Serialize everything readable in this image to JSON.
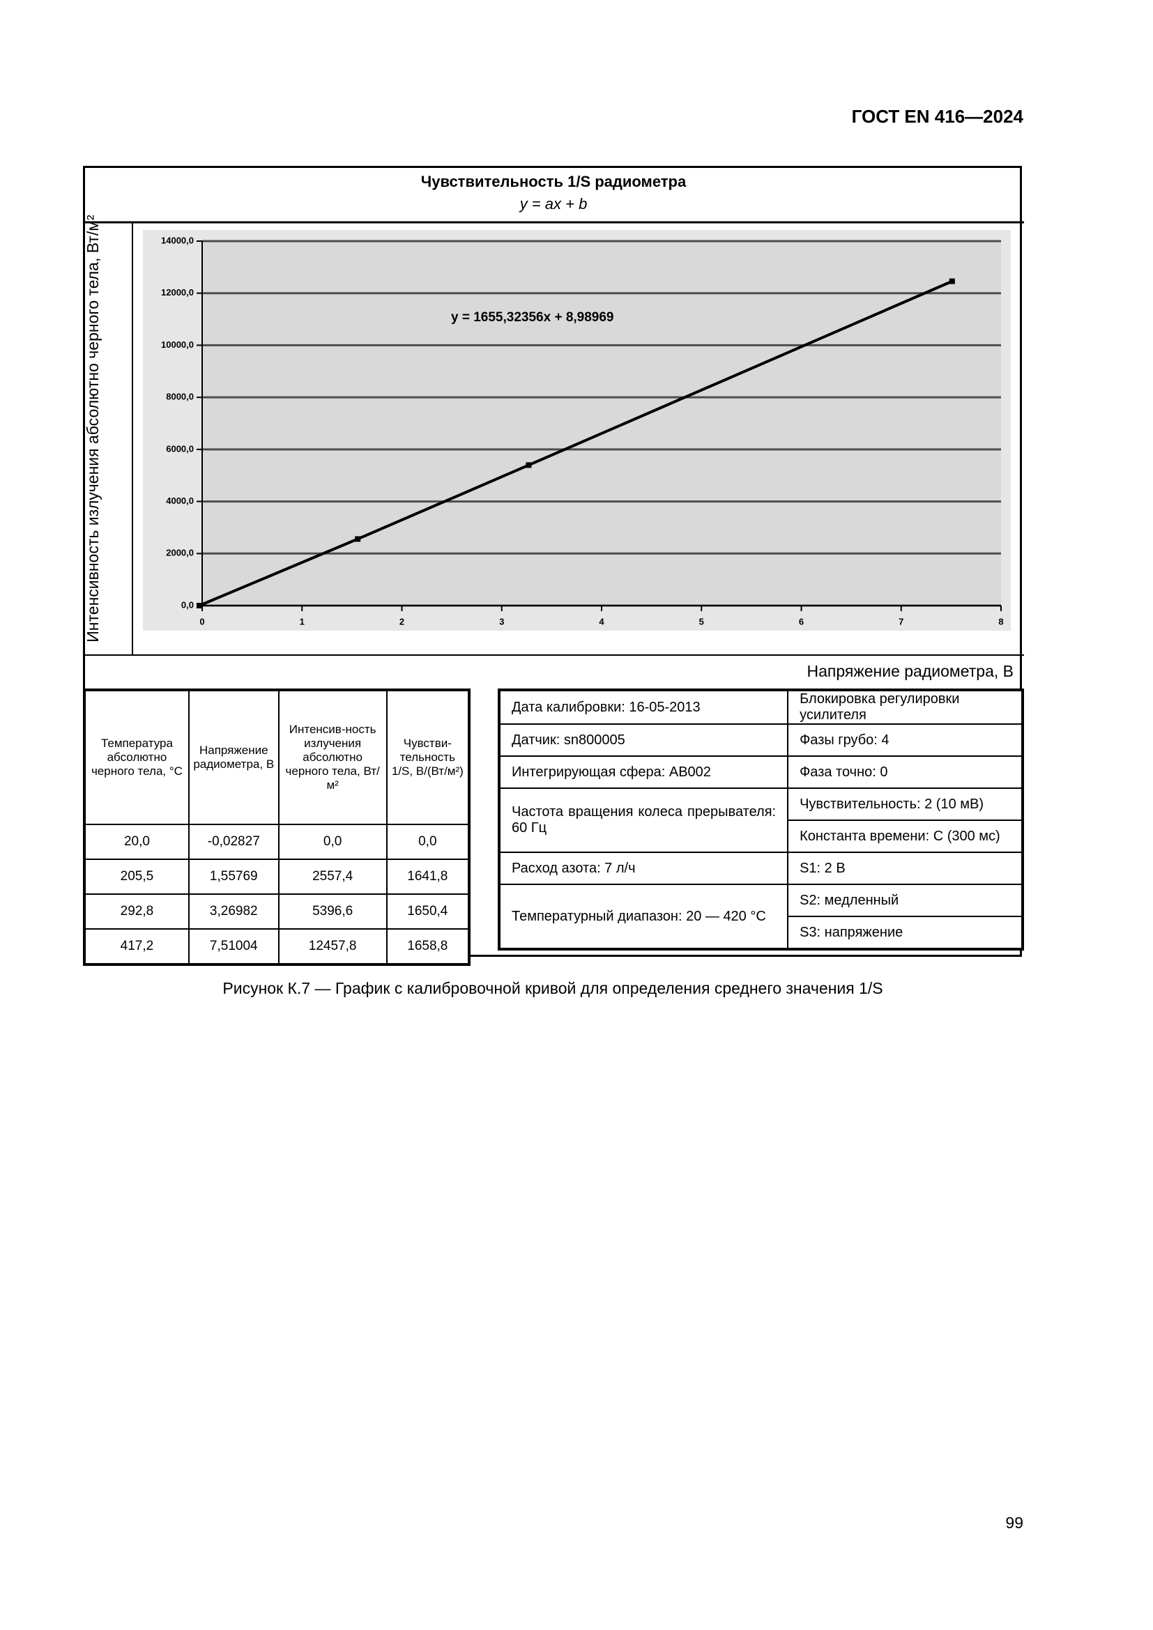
{
  "header": "ГОСТ EN 416—2024",
  "chart_data": {
    "type": "line",
    "title": "Чувствительность 1/S радиометра",
    "subtitle": "y = ax + b",
    "annotation": "y = 1655,32356x + 8,98969",
    "x_label": "Напряжение радиометра, В",
    "y_label": "Интенсивность излучения абсолютно черного тела, Вт/м²",
    "x": [
      -0.02827,
      1.55769,
      3.26982,
      7.51004
    ],
    "series": [
      {
        "color": "#000000",
        "values": [
          0,
          2557.4,
          5396.6,
          12457.8
        ]
      }
    ],
    "xlim": [
      0,
      8
    ],
    "xticks": [
      0,
      1,
      2,
      3,
      4,
      5,
      6,
      7,
      8
    ],
    "ylim": [
      0,
      14000
    ],
    "yticks": [
      {
        "value": 0,
        "label": "0,0"
      },
      {
        "value": 2000,
        "label": "2000,0"
      },
      {
        "value": 4000,
        "label": "4000,0"
      },
      {
        "value": 6000,
        "label": "6000,0"
      },
      {
        "value": 8000,
        "label": "8000,0"
      },
      {
        "value": 10000,
        "label": "10000,0"
      },
      {
        "value": 12000,
        "label": "12000,0"
      },
      {
        "value": 14000,
        "label": "14000,0"
      }
    ],
    "grid": true
  },
  "table": {
    "header": [
      "Температура абсолютно черного тела, °C",
      "Напряжение радиометра, В",
      "Интенсив-ность излучения абсолютно черного тела, Вт/м²",
      "Чувстви-тельность 1/S, В/(Вт/м²)"
    ],
    "rows": [
      [
        "20,0",
        "-0,02827",
        "0,0",
        "0,0"
      ],
      [
        "205,5",
        "1,55769",
        "2557,4",
        "1641,8"
      ],
      [
        "292,8",
        "3,26982",
        "5396,6",
        "1650,4"
      ],
      [
        "417,2",
        "7,51004",
        "12457,8",
        "1658,8"
      ]
    ]
  },
  "settings": {
    "left": [
      "Дата калибровки: 16-05-2013",
      "Датчик: sn800005",
      "Интегрирующая сфера: AB002",
      "Частота вращения колеса прерывателя: 60 Гц",
      "Расход азота: 7 л/ч",
      "Температурный диапазон: 20 — 420 °C"
    ],
    "right": [
      "Блокировка регулировки усилителя",
      "Фазы грубо: 4",
      "Фаза точно: 0",
      "Чувствительность: 2 (10 мВ)",
      "Константа времени: C (300 мс)",
      "S1: 2 B",
      "S2: медленный",
      "S3: напряжение"
    ]
  },
  "caption": "Рисунок К.7 — График с калибровочной кривой для определения среднего значения 1/S",
  "page_number": "99"
}
